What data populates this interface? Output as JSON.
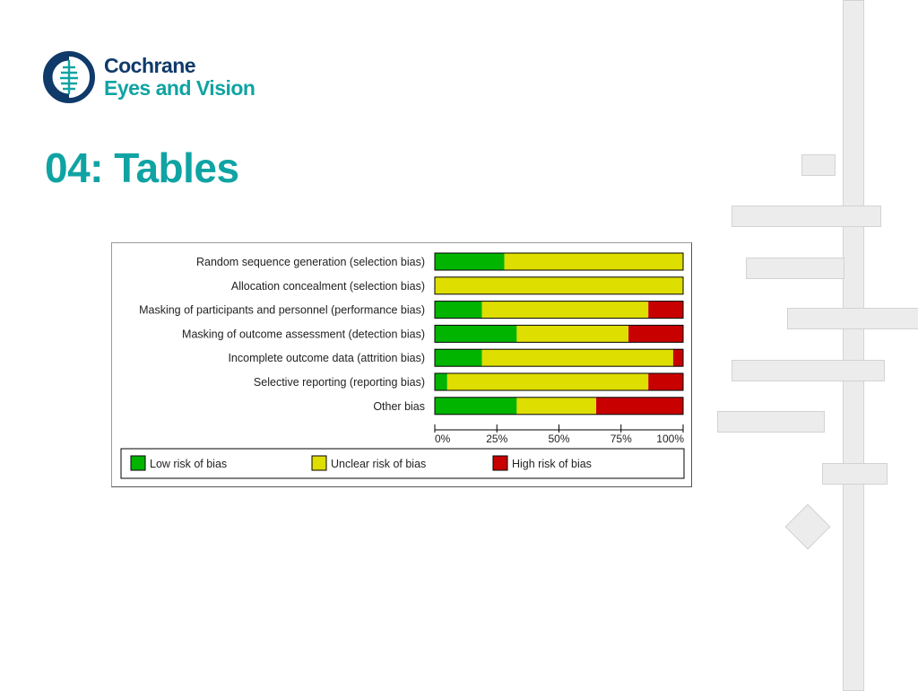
{
  "logo": {
    "line1": "Cochrane",
    "line2": "Eyes and Vision"
  },
  "title": "04: Tables",
  "colors": {
    "low": "#00b400",
    "unclear": "#dede00",
    "high": "#c80000",
    "accent": "#10a3a3",
    "navy": "#0f3a6a"
  },
  "chart_data": {
    "type": "bar",
    "orientation": "horizontal-stacked-percent",
    "categories": [
      "Random sequence generation (selection bias)",
      "Allocation concealment (selection bias)",
      "Masking of participants and personnel (performance bias)",
      "Masking of outcome assessment (detection bias)",
      "Incomplete outcome data (attrition bias)",
      "Selective reporting (reporting bias)",
      "Other bias"
    ],
    "series": [
      {
        "name": "Low risk of bias",
        "color": "#00b400",
        "values": [
          28,
          0,
          19,
          33,
          19,
          5,
          33
        ]
      },
      {
        "name": "Unclear risk of bias",
        "color": "#dede00",
        "values": [
          72,
          100,
          67,
          45,
          77,
          81,
          32
        ]
      },
      {
        "name": "High risk of bias",
        "color": "#c80000",
        "values": [
          0,
          0,
          14,
          22,
          4,
          14,
          35
        ]
      }
    ],
    "xticks": [
      "0%",
      "25%",
      "50%",
      "75%",
      "100%"
    ],
    "xlim": [
      0,
      100
    ],
    "legend_position": "bottom"
  }
}
